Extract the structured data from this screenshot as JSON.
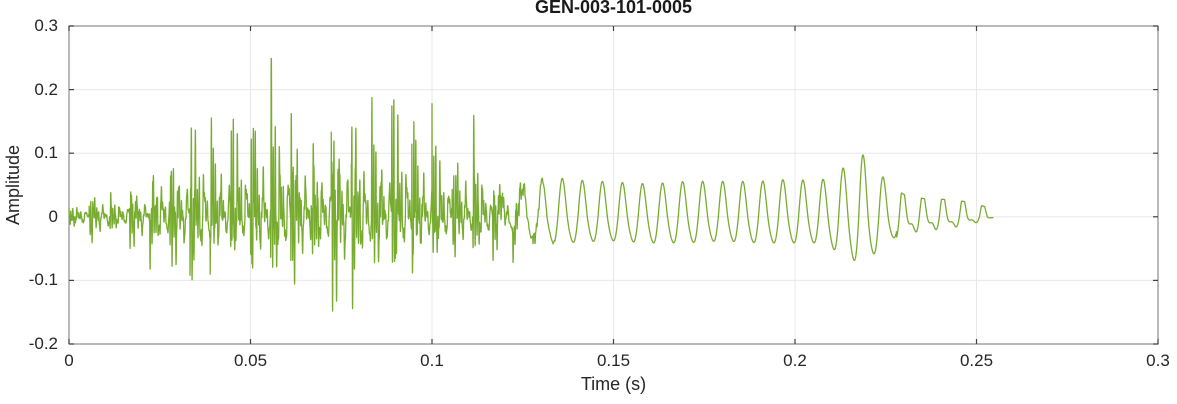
{
  "chart_data": {
    "type": "line",
    "title": "GEN-003-101-0005",
    "xlabel": "Time (s)",
    "ylabel": "Amplitude",
    "xlim": [
      0,
      0.3
    ],
    "ylim": [
      -0.2,
      0.3
    ],
    "xticks": [
      0,
      0.05,
      0.1,
      0.15,
      0.2,
      0.25,
      0.3
    ],
    "xtick_labels": [
      "0",
      "0.05",
      "0.1",
      "0.15",
      "0.2",
      "0.25",
      "0.3"
    ],
    "yticks": [
      -0.2,
      -0.1,
      0,
      0.1,
      0.2,
      0.3
    ],
    "ytick_labels": [
      "-0.2",
      "-0.1",
      "0",
      "0.1",
      "0.2",
      "0.3"
    ],
    "grid": true,
    "legend": "none",
    "line_color": "#77ac30",
    "axis_color": "#8c8c8c",
    "tick_color": "#404040",
    "grid_color": "#e8e8e8",
    "text_color": "#262626",
    "background_color": "#ffffff",
    "signal": {
      "description": "speech-like audio waveform; envelope sampled as [time_s, upper_amplitude, lower_amplitude]",
      "duration": 0.2545,
      "model": {
        "f0_hz": 180,
        "tail_hz": 181,
        "formants_hz": [
          860,
          1810,
          3640
        ]
      },
      "envelope": [
        [
          0.0,
          0.02,
          -0.03
        ],
        [
          0.003,
          0.05,
          -0.05
        ],
        [
          0.008,
          0.055,
          -0.05
        ],
        [
          0.013,
          0.06,
          -0.05
        ],
        [
          0.017,
          0.09,
          -0.06
        ],
        [
          0.021,
          0.08,
          -0.085
        ],
        [
          0.025,
          0.17,
          -0.1
        ],
        [
          0.03,
          0.175,
          -0.135
        ],
        [
          0.036,
          0.235,
          -0.155
        ],
        [
          0.041,
          0.245,
          -0.12
        ],
        [
          0.046,
          0.28,
          -0.12
        ],
        [
          0.052,
          0.26,
          -0.13
        ],
        [
          0.057,
          0.245,
          -0.14
        ],
        [
          0.063,
          0.22,
          -0.13
        ],
        [
          0.068,
          0.21,
          -0.14
        ],
        [
          0.074,
          0.235,
          -0.17
        ],
        [
          0.08,
          0.21,
          -0.15
        ],
        [
          0.086,
          0.25,
          -0.14
        ],
        [
          0.092,
          0.24,
          -0.12
        ],
        [
          0.097,
          0.235,
          -0.12
        ],
        [
          0.101,
          0.19,
          -0.11
        ],
        [
          0.105,
          0.17,
          -0.1
        ],
        [
          0.109,
          0.22,
          -0.1
        ],
        [
          0.113,
          0.15,
          -0.09
        ],
        [
          0.118,
          0.12,
          -0.08
        ],
        [
          0.122,
          0.13,
          -0.075
        ],
        [
          0.127,
          0.085,
          -0.065
        ],
        [
          0.132,
          0.065,
          -0.055
        ],
        [
          0.14,
          0.058,
          -0.048
        ],
        [
          0.15,
          0.055,
          -0.046
        ],
        [
          0.16,
          0.052,
          -0.05
        ],
        [
          0.17,
          0.056,
          -0.05
        ],
        [
          0.18,
          0.056,
          -0.046
        ],
        [
          0.19,
          0.056,
          -0.05
        ],
        [
          0.2,
          0.06,
          -0.05
        ],
        [
          0.206,
          0.055,
          -0.05
        ],
        [
          0.21,
          0.065,
          -0.06
        ],
        [
          0.214,
          0.08,
          -0.075
        ],
        [
          0.218,
          0.102,
          -0.09
        ],
        [
          0.222,
          0.08,
          -0.07
        ],
        [
          0.226,
          0.05,
          -0.045
        ],
        [
          0.23,
          0.035,
          -0.03
        ],
        [
          0.236,
          0.028,
          -0.025
        ],
        [
          0.243,
          0.027,
          -0.02
        ],
        [
          0.249,
          0.022,
          -0.012
        ],
        [
          0.2545,
          0.012,
          -0.003
        ]
      ]
    }
  }
}
